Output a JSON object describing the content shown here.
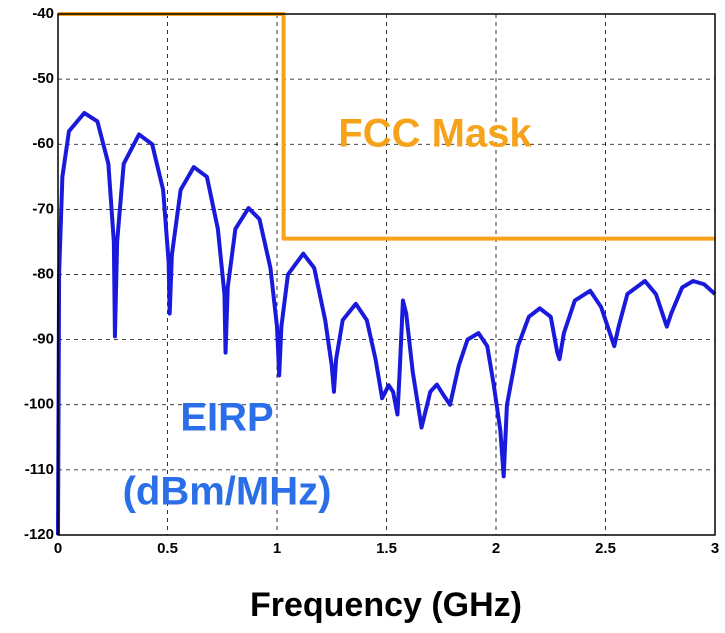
{
  "chart_data": {
    "type": "line",
    "xlabel": "Frequency (GHz)",
    "xlim": [
      0,
      3
    ],
    "ylim": [
      -120,
      -40
    ],
    "xticks": [
      0,
      0.5,
      1,
      1.5,
      2,
      2.5,
      3
    ],
    "yticks": [
      -120,
      -110,
      -100,
      -90,
      -80,
      -70,
      -60,
      -50,
      -40
    ],
    "grid": true,
    "series": [
      {
        "name": "FCC Mask",
        "color": "#f7a21b",
        "x": [
          0,
          1.03,
          1.03,
          3
        ],
        "values": [
          -40,
          -40,
          -74.5,
          -74.5
        ]
      },
      {
        "name": "EIRP",
        "color": "#1a1adc",
        "x": [
          0,
          0.005,
          0.02,
          0.05,
          0.12,
          0.18,
          0.23,
          0.255,
          0.26,
          0.27,
          0.3,
          0.37,
          0.43,
          0.48,
          0.505,
          0.51,
          0.52,
          0.56,
          0.62,
          0.68,
          0.73,
          0.76,
          0.765,
          0.775,
          0.81,
          0.87,
          0.92,
          0.97,
          1.0,
          1.01,
          1.02,
          1.05,
          1.12,
          1.17,
          1.22,
          1.25,
          1.26,
          1.27,
          1.3,
          1.36,
          1.41,
          1.45,
          1.48,
          1.51,
          1.53,
          1.55,
          1.56,
          1.575,
          1.59,
          1.62,
          1.66,
          1.7,
          1.73,
          1.76,
          1.79,
          1.83,
          1.87,
          1.92,
          1.96,
          1.99,
          2.02,
          2.035,
          2.05,
          2.1,
          2.15,
          2.2,
          2.25,
          2.28,
          2.29,
          2.31,
          2.36,
          2.43,
          2.48,
          2.52,
          2.54,
          2.56,
          2.6,
          2.68,
          2.73,
          2.77,
          2.78,
          2.8,
          2.85,
          2.9,
          2.95,
          3.0
        ],
        "values": [
          -120,
          -80,
          -65,
          -58,
          -55.2,
          -56.5,
          -63,
          -75,
          -89.5,
          -75,
          -63,
          -58.5,
          -60,
          -67,
          -78,
          -86,
          -77,
          -67,
          -63.5,
          -65,
          -73,
          -83,
          -92,
          -82,
          -73,
          -69.8,
          -71.5,
          -79,
          -88,
          -95.5,
          -88,
          -80,
          -76.8,
          -79,
          -87,
          -94,
          -98,
          -93,
          -87,
          -84.5,
          -87,
          -93,
          -99,
          -97,
          -98,
          -101.5,
          -95,
          -84,
          -86,
          -95,
          -103.5,
          -98,
          -96.9,
          -98.5,
          -100,
          -94,
          -90,
          -89,
          -91,
          -97,
          -104,
          -111,
          -100,
          -91,
          -86.5,
          -85.2,
          -86.5,
          -92,
          -93,
          -89,
          -84,
          -82.5,
          -85,
          -89,
          -91,
          -88,
          -83,
          -81,
          -83,
          -87,
          -88,
          -86,
          -82,
          -81,
          -81.5,
          -83
        ]
      }
    ],
    "annotations": [
      "(dBm/MHz)"
    ]
  }
}
